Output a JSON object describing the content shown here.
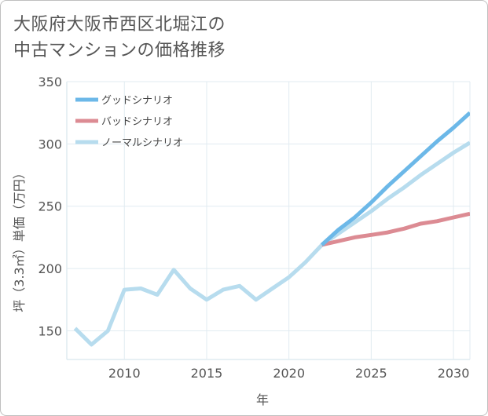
{
  "title_line1": "大阪府大阪市西区北堀江の",
  "title_line2": "中古マンションの価格推移",
  "chart_data": {
    "type": "line",
    "title": "大阪府大阪市西区北堀江の中古マンションの価格推移",
    "xlabel": "年",
    "ylabel": "坪（3.3㎡）単価（万円）",
    "xlim": [
      2006.5,
      2031
    ],
    "ylim": [
      127,
      350
    ],
    "x_ticks": [
      2010,
      2015,
      2020,
      2025,
      2030
    ],
    "y_ticks": [
      150,
      200,
      250,
      300,
      350
    ],
    "grid": true,
    "legend_position": "top-left",
    "series": [
      {
        "name": "グッドシナリオ",
        "color": "#6cb8e8",
        "x": [
          2022,
          2023,
          2024,
          2025,
          2026,
          2027,
          2028,
          2029,
          2030,
          2031
        ],
        "values": [
          219,
          231,
          241,
          253,
          266,
          278,
          290,
          302,
          313,
          325
        ]
      },
      {
        "name": "バッドシナリオ",
        "color": "#dc8b93",
        "x": [
          2022,
          2023,
          2024,
          2025,
          2026,
          2027,
          2028,
          2029,
          2030,
          2031
        ],
        "values": [
          219,
          222,
          225,
          227,
          229,
          232,
          236,
          238,
          241,
          244
        ]
      },
      {
        "name": "ノーマルシナリオ",
        "color": "#b7dcee",
        "x": [
          2007,
          2008,
          2009,
          2010,
          2011,
          2012,
          2013,
          2014,
          2015,
          2016,
          2017,
          2018,
          2019,
          2020,
          2021,
          2022,
          2023,
          2024,
          2025,
          2026,
          2027,
          2028,
          2029,
          2030,
          2031
        ],
        "values": [
          152,
          139,
          150,
          183,
          184,
          179,
          199,
          184,
          175,
          183,
          186,
          175,
          184,
          193,
          205,
          219,
          228,
          237,
          246,
          256,
          265,
          275,
          284,
          293,
          301
        ]
      }
    ]
  }
}
